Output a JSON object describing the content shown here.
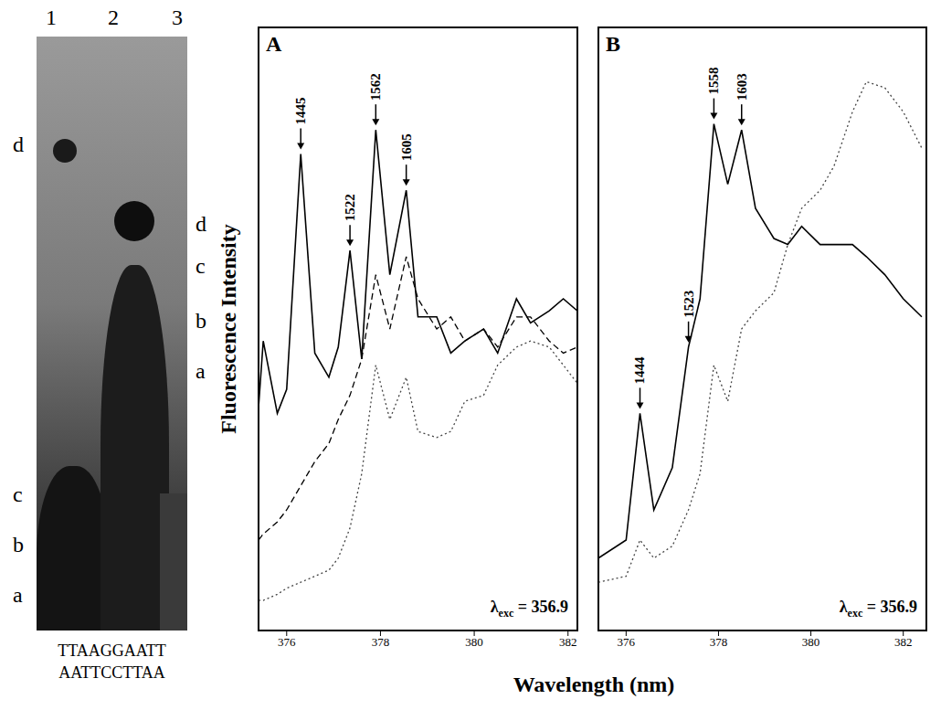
{
  "gel": {
    "lanes": [
      "1",
      "2",
      "3"
    ],
    "left_bands": [
      "d",
      "c",
      "b",
      "a"
    ],
    "right_bands": [
      "d",
      "c",
      "b",
      "a"
    ],
    "sequence": [
      "TTAAGGAATT",
      "AATTCCTTAA"
    ]
  },
  "y_label": "Fluorescence Intensity",
  "x_label": "Wavelength (nm)",
  "chart_data": [
    {
      "type": "line",
      "panel": "A",
      "x": [
        375.4,
        375.5,
        375.8,
        376.0,
        376.3,
        376.6,
        376.9,
        377.1,
        377.35,
        377.6,
        377.9,
        378.2,
        378.55,
        378.8,
        379.2,
        379.5,
        379.8,
        380.2,
        380.5,
        380.9,
        381.2,
        381.6,
        381.9,
        382.2
      ],
      "series": [
        {
          "color": "#000000",
          "line_style": "solid",
          "values": [
            37,
            48,
            36,
            40,
            79,
            46,
            42,
            47,
            63,
            45,
            83,
            59,
            73,
            52,
            52,
            46,
            48,
            50,
            46,
            55,
            51,
            53,
            55,
            53
          ]
        },
        {
          "color": "#000000",
          "line_style": "dashed",
          "values": [
            15,
            16,
            18,
            20,
            24,
            28,
            31,
            35,
            39,
            45,
            59,
            50,
            62,
            55,
            50,
            52,
            48,
            50,
            47,
            52,
            52,
            48,
            46,
            47
          ]
        },
        {
          "color": "#444444",
          "line_style": "dotted",
          "values": [
            5,
            5,
            6,
            7,
            8,
            9,
            10,
            12,
            17,
            26,
            44,
            35,
            42,
            33,
            32,
            33,
            38,
            39,
            44,
            47,
            48,
            47,
            44,
            41
          ]
        }
      ],
      "xlim": [
        375.4,
        382.2
      ],
      "xticks": [
        376,
        378,
        380,
        382
      ],
      "ylim": [
        0,
        100
      ],
      "tick_labels": "x",
      "peaks": [
        {
          "x": 376.3,
          "y": 79,
          "label": "1445"
        },
        {
          "x": 377.35,
          "y": 63,
          "label": "1522"
        },
        {
          "x": 377.9,
          "y": 83,
          "label": "1562"
        },
        {
          "x": 378.55,
          "y": 73,
          "label": "1605"
        }
      ],
      "excitation": {
        "symbol": "λ",
        "subscript": "exc",
        "text": "= 356.9"
      }
    },
    {
      "type": "line",
      "panel": "B",
      "x": [
        375.4,
        376.0,
        376.3,
        376.6,
        377.0,
        377.35,
        377.6,
        377.9,
        378.2,
        378.5,
        378.8,
        379.2,
        379.5,
        379.8,
        380.2,
        380.5,
        380.9,
        381.2,
        381.6,
        382.0,
        382.4
      ],
      "series": [
        {
          "color": "#000000",
          "line_style": "solid",
          "values": [
            12,
            15,
            36,
            20,
            27,
            47,
            55,
            84,
            74,
            83,
            70,
            65,
            64,
            67,
            64,
            64,
            64,
            62,
            59,
            55,
            52
          ]
        },
        {
          "color": "#444444",
          "line_style": "dotted",
          "values": [
            8,
            9,
            15,
            12,
            14,
            20,
            26,
            44,
            38,
            50,
            53,
            56,
            64,
            70,
            73,
            77,
            86,
            91,
            90,
            86,
            80
          ]
        }
      ],
      "xlim": [
        375.4,
        382.5
      ],
      "xticks": [
        376,
        378,
        380,
        382
      ],
      "ylim": [
        0,
        100
      ],
      "tick_labels": "x",
      "peaks": [
        {
          "x": 376.3,
          "y": 36,
          "label": "1444"
        },
        {
          "x": 377.35,
          "y": 47,
          "label": "1523"
        },
        {
          "x": 377.9,
          "y": 84,
          "label": "1558"
        },
        {
          "x": 378.5,
          "y": 83,
          "label": "1603"
        }
      ],
      "excitation": {
        "symbol": "λ",
        "subscript": "exc",
        "text": "= 356.9"
      }
    }
  ]
}
